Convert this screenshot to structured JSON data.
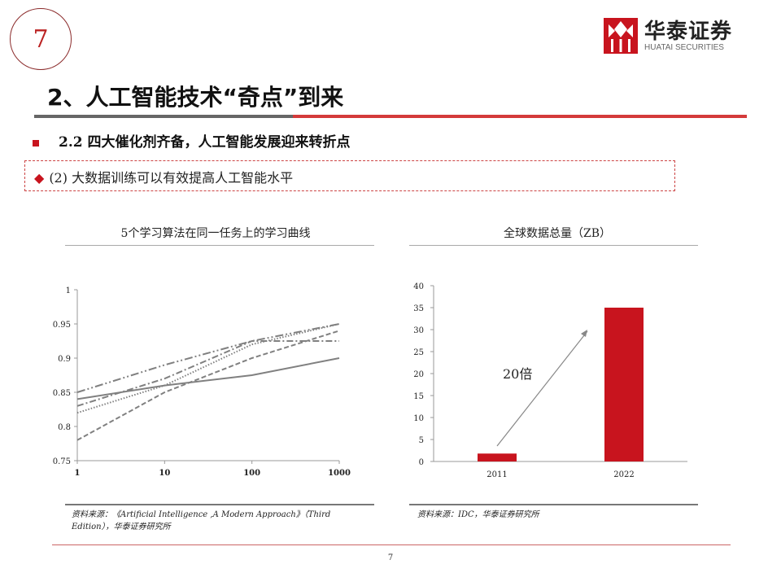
{
  "slide_number": "7",
  "logo": {
    "cn": "华泰证券",
    "en": "HUATAI SECURITIES"
  },
  "title": "2、人工智能技术“奇点”到来",
  "subtitle": "2.2 四大催化剂齐备，人工智能发展迎来转折点",
  "point": "(2) 大数据训练可以有效提高人工智能水平",
  "colors": {
    "brand": "#c8141e",
    "line": "#7f7f7f"
  },
  "chart_data": [
    {
      "type": "line",
      "title": "5个学习算法在同一任务上的学习曲线",
      "x": [
        1,
        10,
        100,
        1000
      ],
      "xscale": "log",
      "x_ticks": [
        "1",
        "10",
        "100",
        "1000"
      ],
      "ylim": [
        0.75,
        1
      ],
      "y_ticks": [
        "0.75",
        "0.8",
        "0.85",
        "0.9",
        "0.95",
        "1"
      ],
      "series": [
        {
          "name": "solid",
          "values": [
            0.84,
            0.86,
            0.875,
            0.9
          ]
        },
        {
          "name": "dashed",
          "values": [
            0.78,
            0.85,
            0.9,
            0.94
          ]
        },
        {
          "name": "dotted",
          "values": [
            0.82,
            0.86,
            0.92,
            0.95
          ]
        },
        {
          "name": "dash-dot",
          "values": [
            0.83,
            0.87,
            0.925,
            0.925
          ]
        },
        {
          "name": "long-dash-dot-dot",
          "values": [
            0.85,
            0.89,
            0.925,
            0.95
          ]
        }
      ],
      "source": "资料来源：《Artificial Intelligence ,A Modern Approach》（Third Edition），华泰证券研究所"
    },
    {
      "type": "bar",
      "title": "全球数据总量（ZB）",
      "categories": [
        "2011",
        "2022"
      ],
      "values": [
        1.8,
        35
      ],
      "ylim": [
        0,
        40
      ],
      "y_ticks": [
        "0",
        "5",
        "10",
        "15",
        "20",
        "25",
        "30",
        "35",
        "40"
      ],
      "annotation": "20倍",
      "source": "资料来源：IDC，华泰证券研究所"
    }
  ],
  "page_number": "7"
}
